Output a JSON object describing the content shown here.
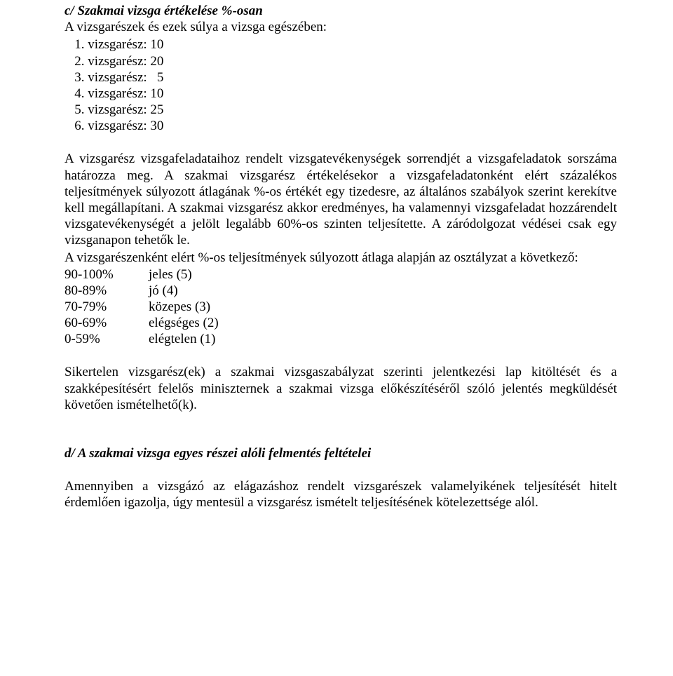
{
  "sectionC": {
    "heading": "c/ Szakmai vizsga értékelése %-osan",
    "intro": "A vizsgarészek és ezek súlya a vizsga egészében:",
    "parts": [
      {
        "label": "1. vizsgarész:",
        "value": "10"
      },
      {
        "label": "2. vizsgarész:",
        "value": "20"
      },
      {
        "label": "3. vizsgarész:",
        "value": "5"
      },
      {
        "label": "4. vizsgarész:",
        "value": "10"
      },
      {
        "label": "5. vizsgarész:",
        "value": "25"
      },
      {
        "label": "6. vizsgarész:",
        "value": "30"
      }
    ],
    "para1": "A vizsgarész vizsgafeladataihoz rendelt vizsgatevékenységek sorrendjét a vizsgafeladatok sorszáma határozza meg. A szakmai vizsgarész értékelésekor a vizsgafeladatonként elért százalékos teljesítmények súlyozott átlagának %-os értékét egy tizedesre, az általános szabályok szerint kerekítve kell megállapítani. A szakmai vizsgarész akkor eredményes, ha valamennyi vizsgafeladat hozzárendelt vizsgatevékenységét a jelölt legalább 60%-os szinten teljesítette. A záródolgozat védései csak egy vizsganapon tehetők le.",
    "para2": "A vizsgarészenként elért %-os teljesítmények súlyozott átlaga alapján az osztályzat a következő:",
    "grades": [
      {
        "pct": "90-100%",
        "name": "jeles (5)"
      },
      {
        "pct": "80-89%",
        "name": "jó (4)"
      },
      {
        "pct": "70-79%",
        "name": "közepes (3)"
      },
      {
        "pct": "60-69%",
        "name": "elégséges (2)"
      },
      {
        "pct": "0-59%",
        "name": "elégtelen (1)"
      }
    ],
    "para3": "Sikertelen vizsgarész(ek) a szakmai vizsgaszabályzat szerinti jelentkezési lap kitöltését és a szakképesítésért felelős miniszternek a szakmai vizsga előkészítéséről szóló jelentés megküldését követően ismételhető(k)."
  },
  "sectionD": {
    "heading": "d/ A szakmai vizsga egyes részei alóli felmentés feltételei",
    "para1": "Amennyiben a vizsgázó az elágazáshoz rendelt vizsgarészek valamelyikének teljesítését hitelt érdemlően igazolja, úgy mentesül a vizsgarész ismételt teljesítésének kötelezettsége alól."
  }
}
